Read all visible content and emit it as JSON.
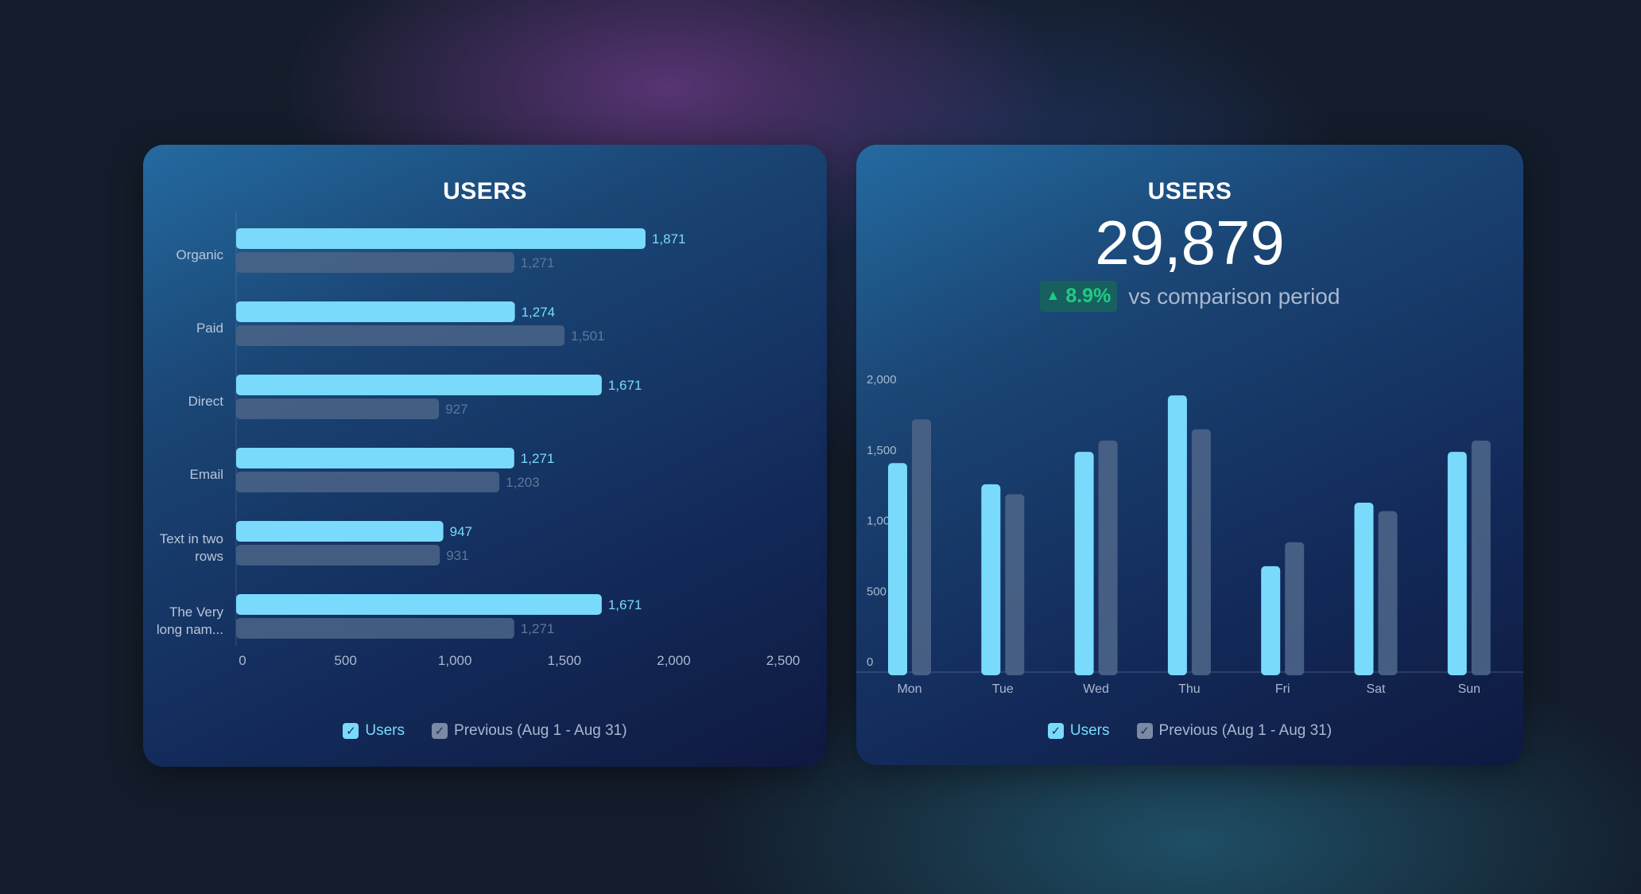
{
  "colors": {
    "users": "#79dafc",
    "previous": "#4b6487",
    "positive": "#1fcc84"
  },
  "left": {
    "title": "USERS"
  },
  "right": {
    "title": "USERS",
    "total": "29,879",
    "change": "8.9%",
    "change_icon": "triangle-up-icon",
    "comparison_text": "vs comparison period"
  },
  "legend": {
    "users": "Users",
    "previous": "Previous (Aug 1 - Aug 31)",
    "check": "✓"
  },
  "chart_data": [
    {
      "type": "bar",
      "orientation": "horizontal",
      "title": "USERS",
      "categories": [
        [
          "Organic"
        ],
        [
          "Paid"
        ],
        [
          "Direct"
        ],
        [
          "Email"
        ],
        [
          "Text in two",
          "rows"
        ],
        [
          "The Very",
          "long nam..."
        ]
      ],
      "series": [
        {
          "name": "Users",
          "values": [
            1871,
            1274,
            1671,
            1271,
            947,
            1671
          ],
          "labels": [
            "1,871",
            "1,274",
            "1,671",
            "1,271",
            "947",
            "1,671"
          ]
        },
        {
          "name": "Previous (Aug 1 - Aug 31)",
          "values": [
            1271,
            1501,
            927,
            1203,
            931,
            1271
          ],
          "labels": [
            "1,271",
            "1,501",
            "927",
            "1,203",
            "931",
            "1,271"
          ]
        }
      ],
      "xlim": [
        0,
        2500
      ],
      "xticks": [
        0,
        500,
        1000,
        1500,
        2000,
        2500
      ],
      "xtick_labels": [
        "0",
        "500",
        "1,000",
        "1,500",
        "2,000",
        "2,500"
      ],
      "legend": "bottom",
      "grid": false
    },
    {
      "type": "bar",
      "orientation": "vertical",
      "title": "USERS",
      "categories": [
        "Mon",
        "Tue",
        "Wed",
        "Thu",
        "Fri",
        "Sat",
        "Sun"
      ],
      "series": [
        {
          "name": "Users",
          "values": [
            1480,
            1330,
            1560,
            1960,
            750,
            1200,
            1560
          ]
        },
        {
          "name": "Previous (Aug 1 - Aug 31)",
          "values": [
            1790,
            1260,
            1640,
            1720,
            920,
            1140,
            1640
          ]
        }
      ],
      "ylim": [
        0,
        2000
      ],
      "yticks": [
        0,
        500,
        1000,
        1500,
        2000
      ],
      "ytick_labels": [
        "0",
        "500",
        "1,000",
        "1,500",
        "2,000"
      ],
      "legend": "bottom",
      "grid": false
    }
  ]
}
